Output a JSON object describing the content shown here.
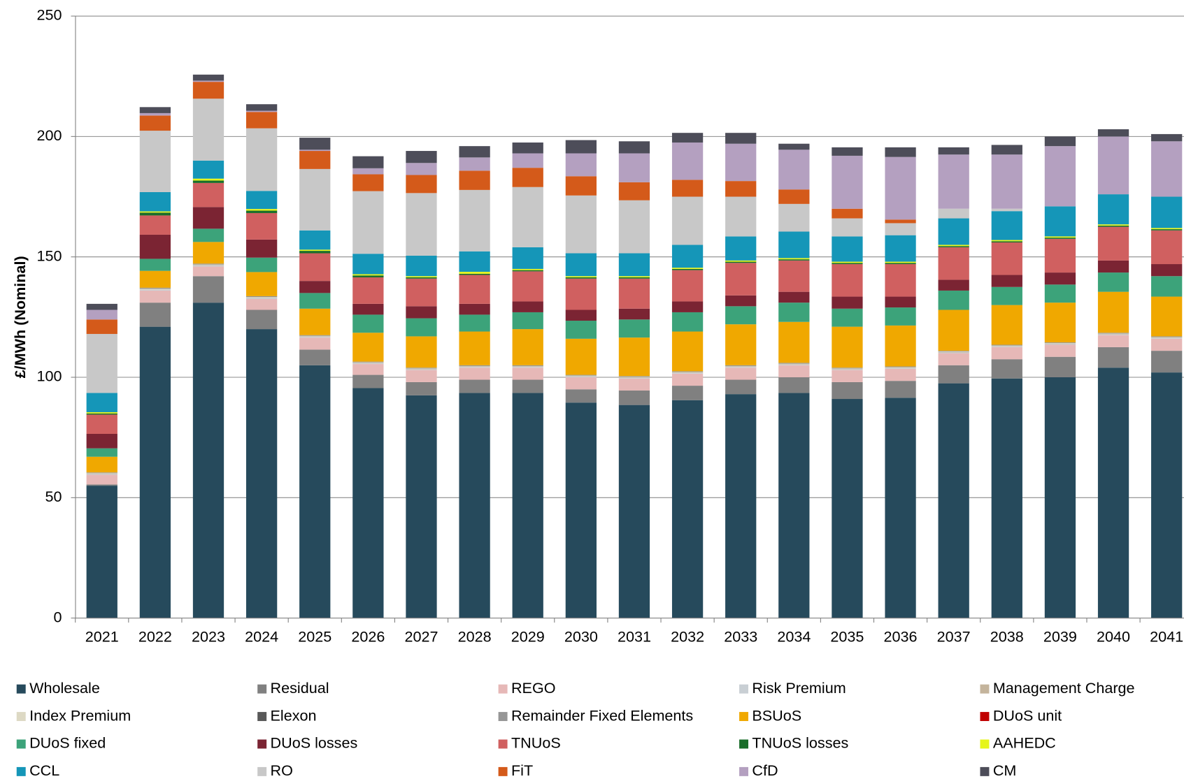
{
  "chart_data": {
    "type": "stacked_bar",
    "y_label": "£/MWh (Nominal)",
    "categories": [
      "2021",
      "2022",
      "2023",
      "2024",
      "2025",
      "2026",
      "2027",
      "2028",
      "2029",
      "2030",
      "2031",
      "2032",
      "2033",
      "2034",
      "2035",
      "2036",
      "2037",
      "2038",
      "2039",
      "2040",
      "2041"
    ],
    "ylim": [
      0,
      250
    ],
    "yticks": [
      0,
      50,
      100,
      150,
      200,
      250
    ],
    "grid": true,
    "legend": "bottom",
    "series": [
      {
        "name": "Wholesale",
        "color": "#264a5c",
        "values": [
          55,
          121,
          131,
          120,
          105,
          95.5,
          92.5,
          93.5,
          93.5,
          89.5,
          88.5,
          90.5,
          93,
          93.5,
          91,
          91.5,
          97.5,
          99.5,
          100,
          104,
          102
        ]
      },
      {
        "name": "Residual",
        "color": "#808080",
        "values": [
          0.5,
          10,
          11,
          8,
          6.5,
          5.5,
          5.5,
          5.5,
          5.5,
          5.5,
          6,
          6,
          6,
          6.5,
          7,
          7,
          7.5,
          8,
          8.5,
          8.5,
          9
        ]
      },
      {
        "name": "REGO",
        "color": "#e6b8b7",
        "values": [
          4,
          5,
          4,
          4.5,
          5,
          4.5,
          5,
          5,
          5,
          5,
          5,
          5,
          5,
          5,
          5,
          5,
          5,
          5,
          5,
          5,
          5
        ]
      },
      {
        "name": "Risk Premium",
        "color": "#c9cfd4",
        "values": [
          0.3,
          0.5,
          0.5,
          0.5,
          0.3,
          0.3,
          0.3,
          0.3,
          0.3,
          0.3,
          0.3,
          0.3,
          0.3,
          0.3,
          0.3,
          0.3,
          0.3,
          0.3,
          0.3,
          0.3,
          0.3
        ]
      },
      {
        "name": "Management Charge",
        "color": "#c4b49c",
        "values": [
          0.2,
          0.2,
          0.2,
          0.2,
          0.2,
          0.2,
          0.2,
          0.2,
          0.2,
          0.2,
          0.2,
          0.2,
          0.2,
          0.2,
          0.2,
          0.2,
          0.2,
          0.2,
          0.2,
          0.2,
          0.2
        ]
      },
      {
        "name": "Index Premium",
        "color": "#ddd9c4",
        "values": [
          0.2,
          0.2,
          0.2,
          0.2,
          0.2,
          0.2,
          0.2,
          0.2,
          0.2,
          0.2,
          0.2,
          0.2,
          0.2,
          0.2,
          0.2,
          0.2,
          0.2,
          0.2,
          0.2,
          0.2,
          0.2
        ]
      },
      {
        "name": "Elexon",
        "color": "#595959",
        "values": [
          0.1,
          0.1,
          0.1,
          0.1,
          0.1,
          0.1,
          0.1,
          0.1,
          0.1,
          0.1,
          0.1,
          0.1,
          0.1,
          0.1,
          0.1,
          0.1,
          0.1,
          0.1,
          0.1,
          0.1,
          0.1
        ]
      },
      {
        "name": "Remainder Fixed Elements",
        "color": "#969696",
        "values": [
          0.2,
          0.2,
          0.2,
          0.2,
          0.2,
          0.2,
          0.2,
          0.2,
          0.2,
          0.2,
          0.2,
          0.2,
          0.2,
          0.2,
          0.2,
          0.2,
          0.2,
          0.2,
          0.2,
          0.2,
          0.2
        ]
      },
      {
        "name": "BSUoS",
        "color": "#f0a800",
        "values": [
          6.5,
          7,
          9,
          10,
          11,
          12,
          13,
          14,
          15,
          15,
          16,
          16.5,
          17,
          17,
          17,
          17,
          17,
          16.5,
          16.5,
          17,
          16.5
        ]
      },
      {
        "name": "DUoS unit",
        "color": "#c00000",
        "values": [
          0,
          0,
          0,
          0,
          0,
          0,
          0,
          0,
          0,
          0,
          0,
          0,
          0,
          0,
          0,
          0,
          0,
          0,
          0,
          0,
          0
        ]
      },
      {
        "name": "DUoS fixed",
        "color": "#3ca37a",
        "values": [
          3.5,
          5,
          5.5,
          6,
          6.5,
          7.5,
          7.5,
          7,
          7,
          7.5,
          7.5,
          8,
          7.5,
          8,
          7.5,
          7.5,
          8,
          7.5,
          7.5,
          8,
          8.5
        ]
      },
      {
        "name": "DUoS losses",
        "color": "#7b2433",
        "values": [
          6,
          10,
          9,
          7.5,
          5,
          4.5,
          5,
          4.5,
          4.5,
          4.5,
          4.5,
          4.5,
          4.5,
          4.5,
          5,
          4.5,
          4.5,
          5,
          5,
          5,
          5
        ]
      },
      {
        "name": "TNUoS",
        "color": "#d06060",
        "values": [
          8,
          8,
          10,
          11,
          11.5,
          11,
          11.5,
          12,
          12.5,
          13,
          12.5,
          13,
          13.5,
          13,
          13.5,
          13.5,
          13.5,
          13.5,
          14,
          14,
          14
        ]
      },
      {
        "name": "TNUoS losses",
        "color": "#1a6e2a",
        "values": [
          0.5,
          1.2,
          1,
          1,
          1,
          0.8,
          0.5,
          0.5,
          0.5,
          0.5,
          0.5,
          0.5,
          0.5,
          0.5,
          0.5,
          0.5,
          0.5,
          0.5,
          0.5,
          0.5,
          0.5
        ]
      },
      {
        "name": "AAHEDC",
        "color": "#e6f51a",
        "values": [
          0.5,
          0.5,
          0.8,
          0.7,
          0.5,
          0.5,
          0.5,
          0.8,
          0.5,
          0.5,
          0.5,
          0.5,
          0.5,
          0.5,
          0.5,
          0.5,
          0.5,
          0.5,
          0.5,
          0.5,
          0.5
        ]
      },
      {
        "name": "CCL",
        "color": "#1596b8",
        "values": [
          8,
          8,
          7.5,
          7.5,
          8,
          8.5,
          8.5,
          8.5,
          9,
          9.5,
          9.5,
          9.5,
          10,
          11,
          10.5,
          11,
          11,
          12,
          12.5,
          12.5,
          13
        ]
      },
      {
        "name": "RO",
        "color": "#c8c8c8",
        "values": [
          24.5,
          25.5,
          25.7,
          26,
          25.5,
          26,
          26,
          25.5,
          25,
          24,
          22,
          20,
          16.5,
          11.5,
          7.5,
          5,
          4,
          1,
          0,
          0,
          0
        ]
      },
      {
        "name": "FiT",
        "color": "#d45a1a",
        "values": [
          6,
          6.3,
          7,
          6.8,
          7.5,
          7,
          7.5,
          8,
          8,
          8,
          7.5,
          7,
          6.5,
          6,
          4,
          1.5,
          0,
          0,
          0,
          0,
          0
        ]
      },
      {
        "name": "CfD",
        "color": "#b4a0c0",
        "values": [
          4,
          1,
          0.5,
          0.5,
          0.5,
          2.5,
          5,
          5.5,
          6,
          9.5,
          12,
          15.5,
          15.5,
          16.5,
          22,
          26,
          22.5,
          22.5,
          25,
          24,
          23
        ]
      },
      {
        "name": "CM",
        "color": "#4d4d59",
        "values": [
          2.5,
          2.5,
          2.5,
          2.7,
          5,
          5,
          5,
          4.7,
          4.5,
          5.5,
          5,
          4,
          4.5,
          2.5,
          3.5,
          4,
          3,
          4,
          4,
          3,
          3
        ]
      }
    ]
  }
}
